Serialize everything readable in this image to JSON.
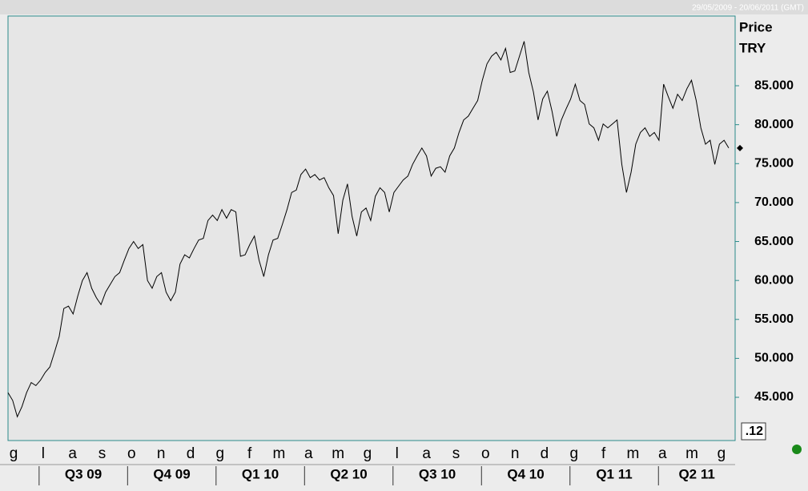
{
  "chart_data": {
    "type": "line",
    "date_range": "29/05/2009 - 20/06/2011 (GMT)",
    "ylabel": "Price",
    "currency": "TRY",
    "corner_label": ".12",
    "months": [
      "g",
      "l",
      "a",
      "s",
      "o",
      "n",
      "d",
      "g",
      "f",
      "m",
      "a",
      "m",
      "g",
      "l",
      "a",
      "s",
      "o",
      "n",
      "d",
      "g",
      "f",
      "m",
      "a",
      "m",
      "g"
    ],
    "quarters": [
      "Q3 09",
      "Q4 09",
      "Q1 10",
      "Q2 10",
      "Q3 10",
      "Q4 10",
      "Q1 11",
      "Q2 11"
    ],
    "color": "#000000",
    "values": [
      45.6,
      44.6,
      42.5,
      43.8,
      45.6,
      46.9,
      46.5,
      47.2,
      48.2,
      48.9,
      50.8,
      52.8,
      56.4,
      56.7,
      55.7,
      58.0,
      60.0,
      61.0,
      59.0,
      57.8,
      56.9,
      58.5,
      59.5,
      60.5,
      61.0,
      62.6,
      64.1,
      65.0,
      64.1,
      64.6,
      60.0,
      59.0,
      60.5,
      61.0,
      58.5,
      57.4,
      58.5,
      62.1,
      63.3,
      62.9,
      64.1,
      65.2,
      65.4,
      67.7,
      68.4,
      67.7,
      69.1,
      68.0,
      69.1,
      68.8,
      63.1,
      63.3,
      64.6,
      65.7,
      62.6,
      60.5,
      63.3,
      65.2,
      65.4,
      67.2,
      69.1,
      71.3,
      71.6,
      73.6,
      74.3,
      73.2,
      73.6,
      72.9,
      73.2,
      71.9,
      70.9,
      66.0,
      70.3,
      72.4,
      68.2,
      65.7,
      68.8,
      69.3,
      67.7,
      70.8,
      71.9,
      71.3,
      68.8,
      71.3,
      72.1,
      72.9,
      73.4,
      74.9,
      76.0,
      77.0,
      76.0,
      73.4,
      74.4,
      74.6,
      73.9,
      76.0,
      77.0,
      79.0,
      80.6,
      81.1,
      82.1,
      83.1,
      85.7,
      87.8,
      88.8,
      89.3,
      88.3,
      89.8,
      86.7,
      86.9,
      88.8,
      90.7,
      86.7,
      84.2,
      80.6,
      83.3,
      84.3,
      81.7,
      78.5,
      80.6,
      82.0,
      83.3,
      85.2,
      83.1,
      82.6,
      80.1,
      79.6,
      78.0,
      80.1,
      79.6,
      80.1,
      80.6,
      74.9,
      71.3,
      73.9,
      77.5,
      79.0,
      79.6,
      78.5,
      79.0,
      78.0,
      85.2,
      83.6,
      82.1,
      83.9,
      83.1,
      84.6,
      85.7,
      83.1,
      79.6,
      77.5,
      78.0,
      74.9,
      77.5,
      78.0,
      77.0
    ],
    "ylim": [
      39.45,
      93.95
    ],
    "yticks": [
      {
        "value": 45,
        "label": "45.000"
      },
      {
        "value": 50,
        "label": "50.000"
      },
      {
        "value": 55,
        "label": "55.000"
      },
      {
        "value": 60,
        "label": "60.000"
      },
      {
        "value": 65,
        "label": "65.000"
      },
      {
        "value": 70,
        "label": "70.000"
      },
      {
        "value": 75,
        "label": "75.000"
      },
      {
        "value": 80,
        "label": "80.000"
      },
      {
        "value": 85,
        "label": "85.000"
      }
    ]
  }
}
